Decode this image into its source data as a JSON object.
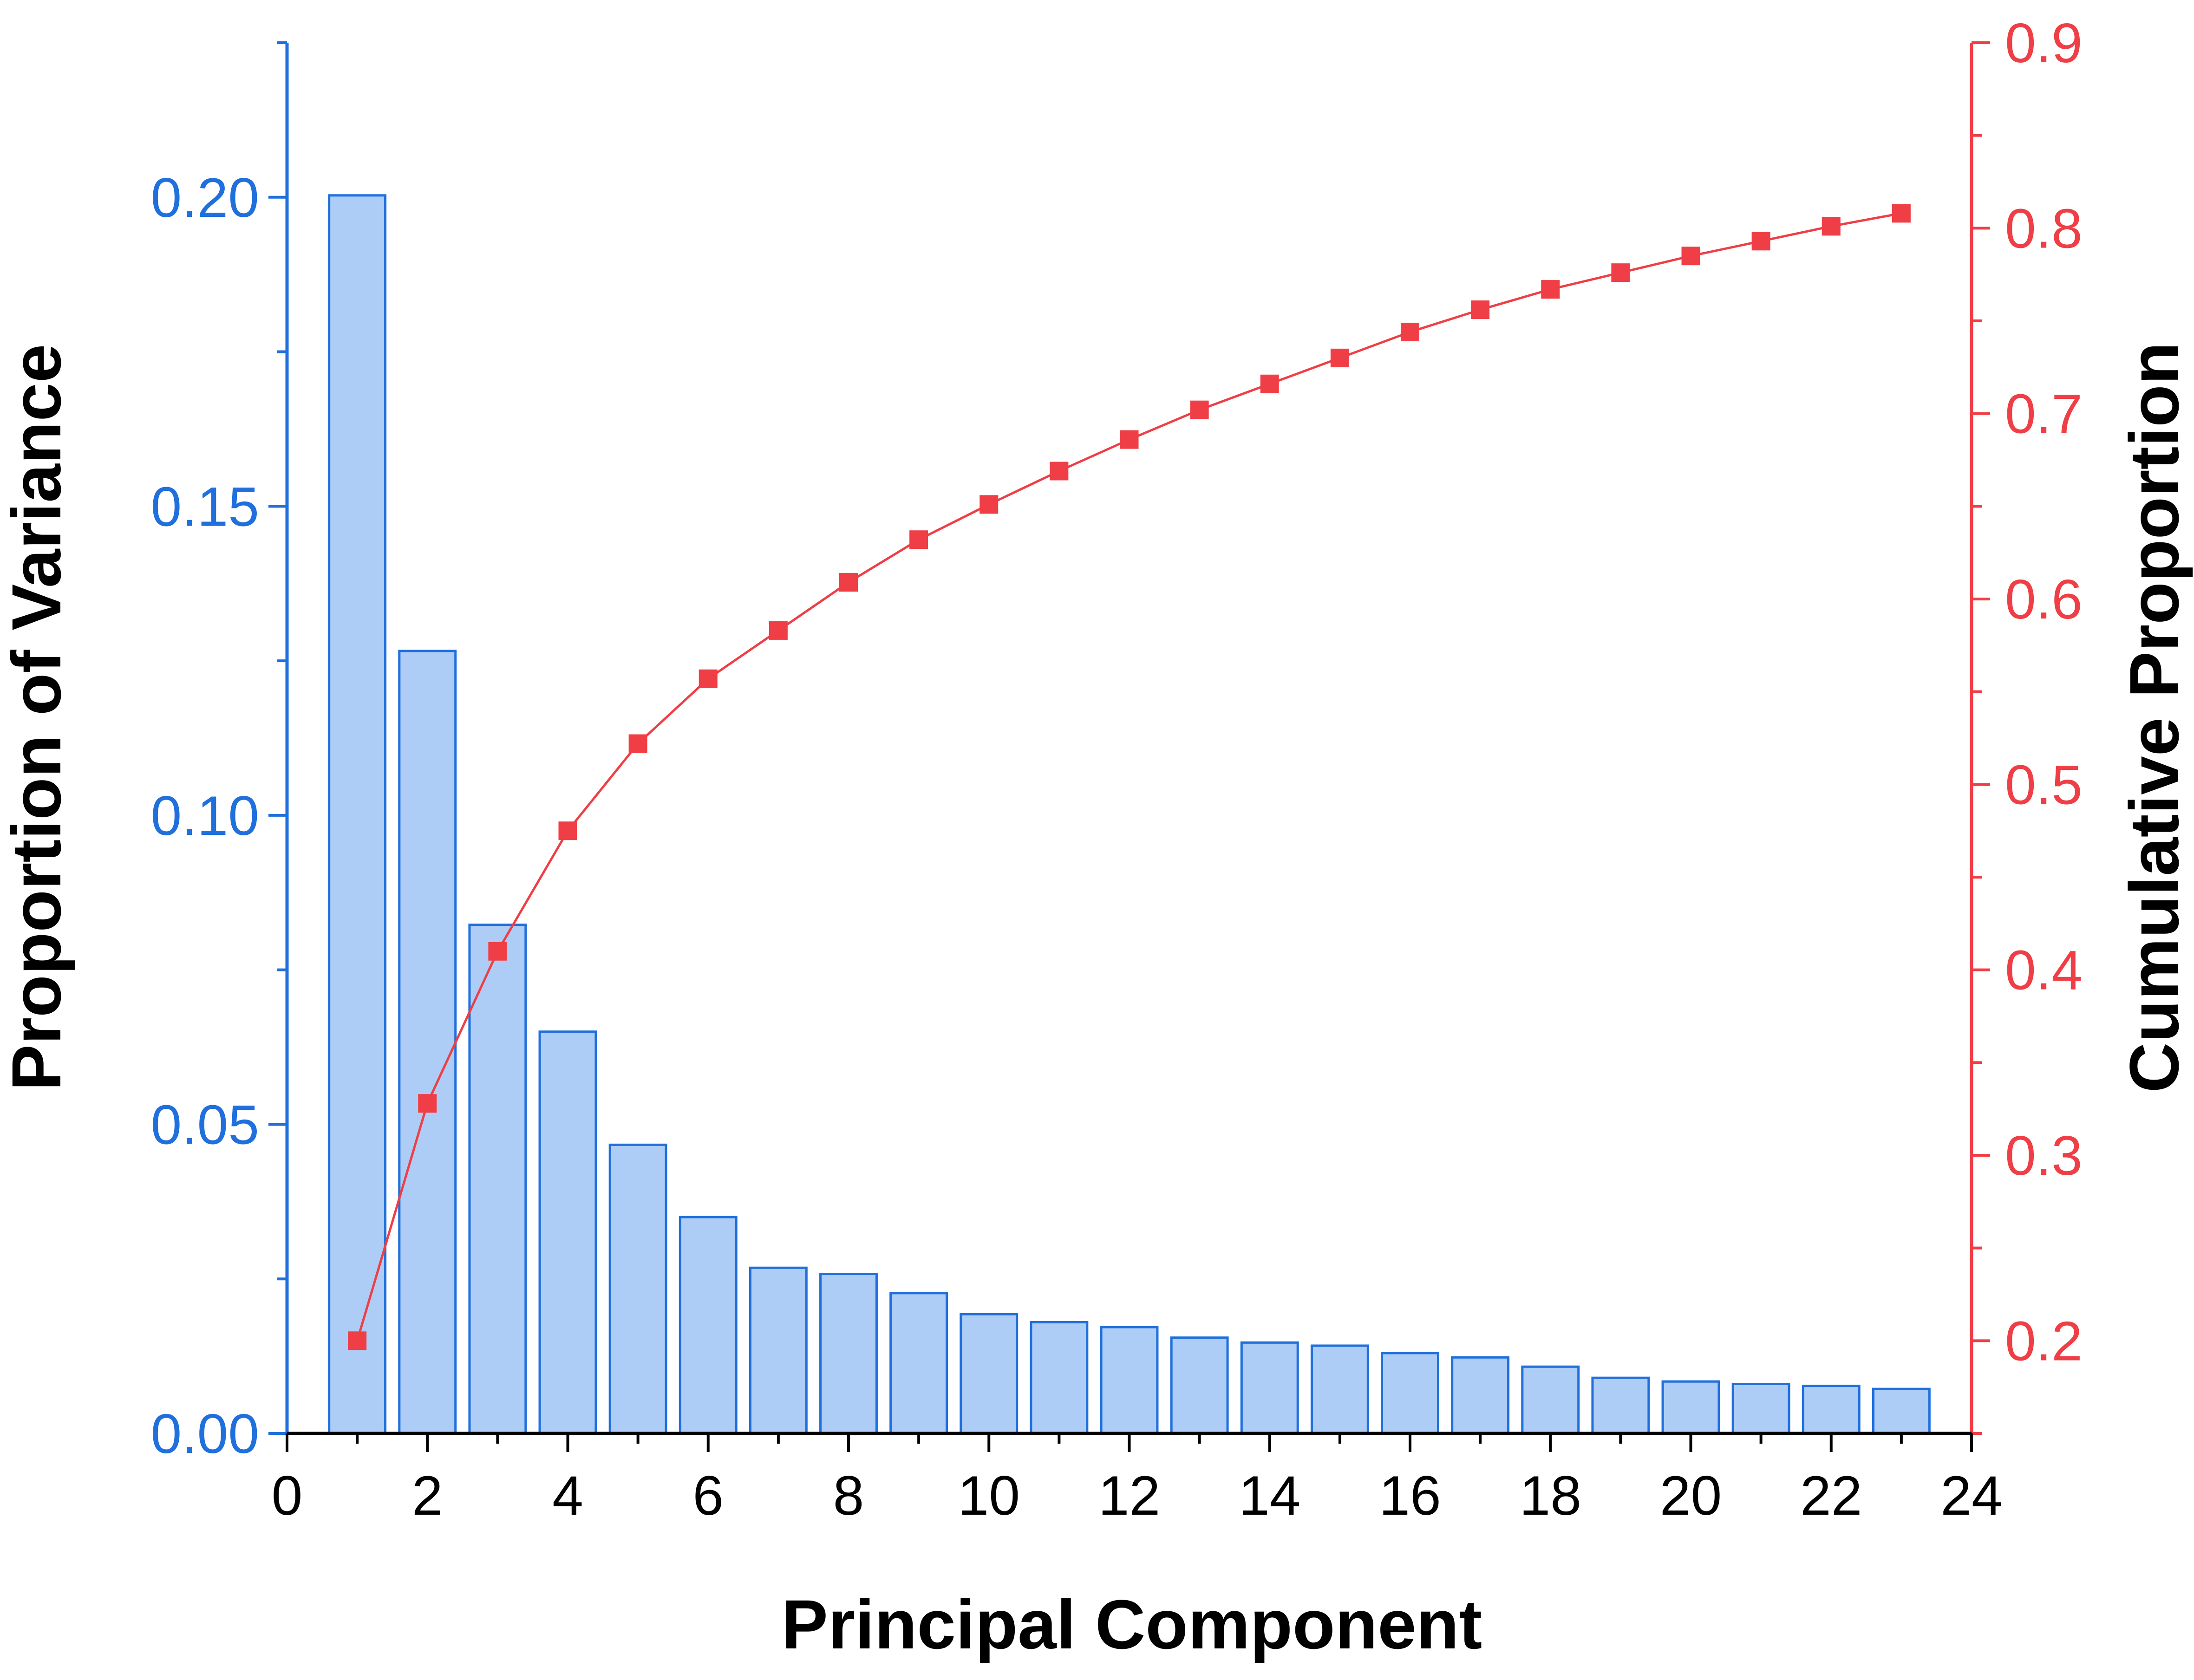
{
  "chart_data": {
    "type": "bar",
    "xlabel": "Principal Component",
    "ylabel": "Proportion of Variance",
    "y2label": "Cumulative Proportion",
    "categories": [
      1,
      2,
      3,
      4,
      5,
      6,
      7,
      8,
      9,
      10,
      11,
      12,
      13,
      14,
      15,
      16,
      17,
      18,
      19,
      20,
      21,
      22,
      23
    ],
    "series": [
      {
        "type": "bar",
        "axis": "left",
        "values": [
          0.2003,
          0.1266,
          0.0823,
          0.065,
          0.0467,
          0.035,
          0.0268,
          0.0258,
          0.0227,
          0.0193,
          0.018,
          0.0172,
          0.0155,
          0.0147,
          0.0142,
          0.013,
          0.0123,
          0.0108,
          0.009,
          0.0084,
          0.008,
          0.0077,
          0.0072
        ]
      },
      {
        "type": "line",
        "axis": "right",
        "marker": "square",
        "values": [
          0.2,
          0.328,
          0.41,
          0.475,
          0.522,
          0.557,
          0.583,
          0.609,
          0.632,
          0.651,
          0.669,
          0.686,
          0.702,
          0.716,
          0.73,
          0.744,
          0.756,
          0.767,
          0.776,
          0.785,
          0.793,
          0.801,
          0.808
        ]
      }
    ],
    "xlim": [
      0,
      24
    ],
    "xticks": [
      "0",
      "2",
      "4",
      "6",
      "8",
      "10",
      "12",
      "14",
      "16",
      "18",
      "20",
      "22",
      "24"
    ],
    "ylim": [
      0,
      0.225
    ],
    "yticks": [
      "0.00",
      "0.05",
      "0.10",
      "0.15",
      "0.20"
    ],
    "y2lim": [
      0.15,
      0.9
    ],
    "y2ticks": [
      "0.2",
      "0.3",
      "0.4",
      "0.5",
      "0.6",
      "0.7",
      "0.8",
      "0.9"
    ],
    "grid": false,
    "legend": "none",
    "colors": {
      "bar_fill": "#aecdf6",
      "bar_stroke": "#1f6fdc",
      "left_axis": "#1f6fdc",
      "right_axis": "#ef3e45",
      "line": "#ef3e45",
      "bottom_axis": "#000000"
    }
  }
}
